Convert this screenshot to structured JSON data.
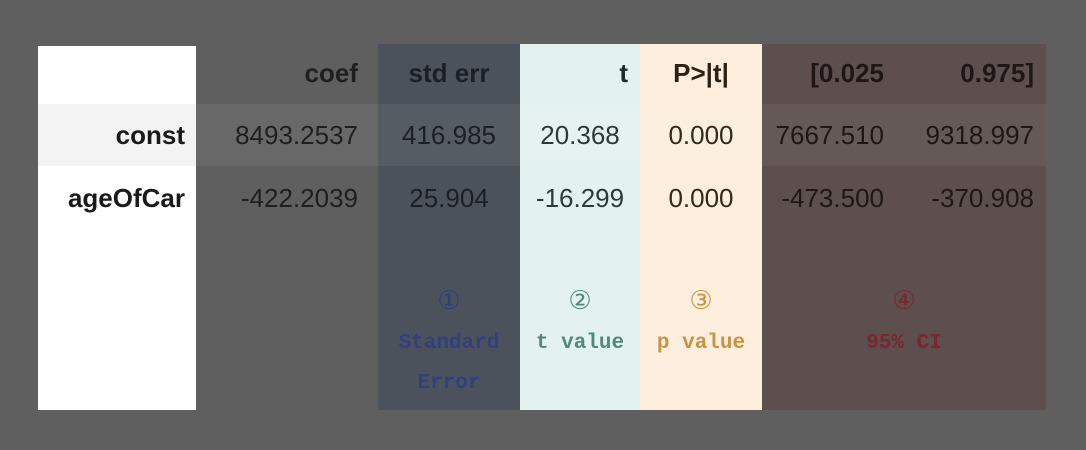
{
  "table": {
    "columns": [
      "coef",
      "std err",
      "t",
      "P>|t|",
      "[0.025",
      "0.975]"
    ],
    "rows": [
      {
        "label": "const",
        "values": [
          "8493.2537",
          "416.985",
          "20.368",
          "0.000",
          "7667.510",
          "9318.997"
        ]
      },
      {
        "label": "ageOfCar",
        "values": [
          "-422.2039",
          "25.904",
          "-16.299",
          "0.000",
          "-473.500",
          "-370.908"
        ]
      }
    ]
  },
  "annotations": [
    {
      "number": "①",
      "text": "Standard Error",
      "color": "#2f3f80"
    },
    {
      "number": "②",
      "text": "t value",
      "color": "#4f8a7a"
    },
    {
      "number": "③",
      "text": "p value",
      "color": "#c79345"
    },
    {
      "number": "④",
      "text": "95% CI",
      "color": "#7a2631"
    }
  ],
  "colors": {
    "background": "#5f5f5f",
    "std_err_shade": "#4c525b",
    "t_shade": "#e4f2ef",
    "p_shade": "#fdeedd",
    "ci_shade": "#5c4f4e"
  }
}
